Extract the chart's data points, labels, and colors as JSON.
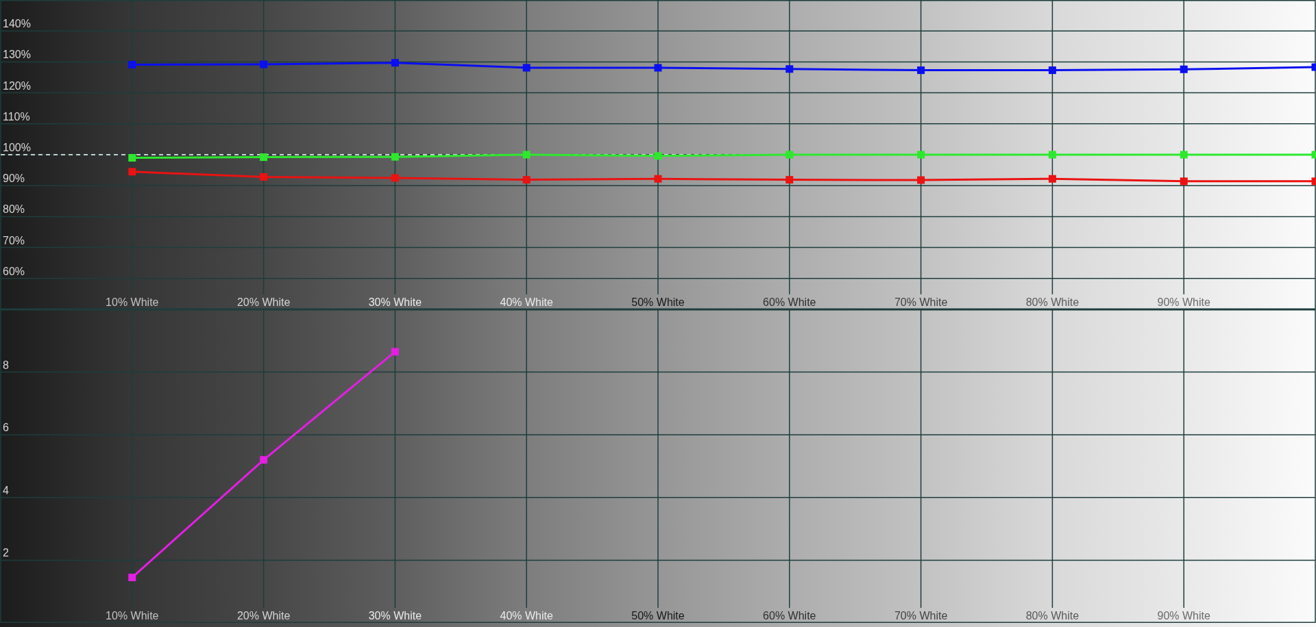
{
  "chart_data": [
    {
      "type": "line",
      "x": [
        10,
        20,
        30,
        40,
        50,
        60,
        70,
        80,
        90,
        100
      ],
      "xlim": [
        0,
        100
      ],
      "ylim": [
        50,
        150
      ],
      "xticks": [
        {
          "value": 10,
          "label": "10% White"
        },
        {
          "value": 20,
          "label": "20% White"
        },
        {
          "value": 30,
          "label": "30% White"
        },
        {
          "value": 40,
          "label": "40% White"
        },
        {
          "value": 50,
          "label": "50% White"
        },
        {
          "value": 60,
          "label": "60% White"
        },
        {
          "value": 70,
          "label": "70% White"
        },
        {
          "value": 80,
          "label": "80% White"
        },
        {
          "value": 90,
          "label": "90% White"
        }
      ],
      "yticks": [
        {
          "value": 60,
          "label": "60%"
        },
        {
          "value": 70,
          "label": "70%"
        },
        {
          "value": 80,
          "label": "80%"
        },
        {
          "value": 90,
          "label": "90%"
        },
        {
          "value": 100,
          "label": "100%"
        },
        {
          "value": 110,
          "label": "110%"
        },
        {
          "value": 120,
          "label": "120%"
        },
        {
          "value": 130,
          "label": "130%"
        },
        {
          "value": 140,
          "label": "140%"
        }
      ],
      "grid": true,
      "marker": "square",
      "line_style": "solid",
      "ref_lines": [
        {
          "axis": "y",
          "value": 100,
          "color": "#ffffff",
          "line_style": "dashed"
        }
      ],
      "series": [
        {
          "color": "#0a0ff0",
          "values": [
            129.1,
            129.2,
            129.7,
            128.1,
            128.1,
            127.7,
            127.3,
            127.3,
            127.6,
            128.3
          ]
        },
        {
          "color": "#2ee82e",
          "values": [
            99.0,
            99.2,
            99.3,
            100.0,
            99.6,
            100.0,
            100.0,
            100.0,
            100.0,
            100.0
          ]
        },
        {
          "color": "#ea1212",
          "values": [
            94.5,
            92.8,
            92.5,
            91.9,
            92.2,
            91.9,
            91.8,
            92.2,
            91.4,
            91.4
          ]
        }
      ]
    },
    {
      "type": "line",
      "x": [
        10,
        20,
        30
      ],
      "xlim": [
        0,
        100
      ],
      "ylim": [
        0,
        10
      ],
      "xticks": [
        {
          "value": 10,
          "label": "10% White"
        },
        {
          "value": 20,
          "label": "20% White"
        },
        {
          "value": 30,
          "label": "30% White"
        },
        {
          "value": 40,
          "label": "40% White"
        },
        {
          "value": 50,
          "label": "50% White"
        },
        {
          "value": 60,
          "label": "60% White"
        },
        {
          "value": 70,
          "label": "70% White"
        },
        {
          "value": 80,
          "label": "80% White"
        },
        {
          "value": 90,
          "label": "90% White"
        }
      ],
      "yticks": [
        2,
        4,
        6,
        8
      ],
      "grid": true,
      "marker": "square",
      "line_style": "solid",
      "series": [
        {
          "color": "#e41ee4",
          "values": [
            1.45,
            5.2,
            8.65
          ]
        }
      ]
    }
  ]
}
